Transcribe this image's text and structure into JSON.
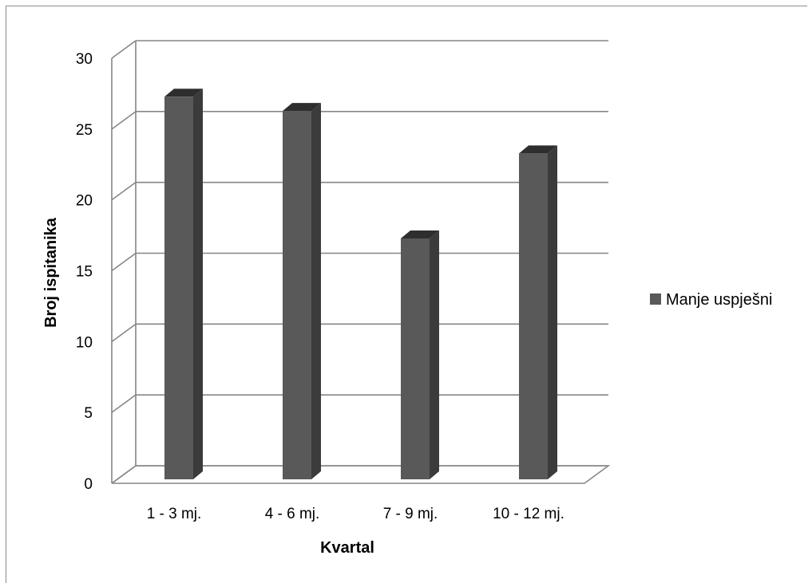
{
  "chart_data": {
    "type": "bar",
    "style": "3d-column",
    "categories": [
      "1 - 3 mj.",
      "4 - 6 mj.",
      "7 - 9 mj.",
      "10 - 12 mj."
    ],
    "series": [
      {
        "name": "Manje uspješni",
        "values": [
          27,
          26,
          17,
          23
        ]
      }
    ],
    "xlabel": "Kvartal",
    "ylabel": "Broj ispitanika",
    "ylim": [
      0,
      30
    ],
    "yticks": [
      0,
      5,
      10,
      15,
      20,
      25,
      30
    ],
    "grid": true,
    "legend_position": "right",
    "colors": {
      "bar_front": "#595959",
      "bar_side": "#3b3b3b",
      "bar_top": "#2e2e2e",
      "grid": "#868686",
      "frame": "#8c8c8c"
    }
  }
}
